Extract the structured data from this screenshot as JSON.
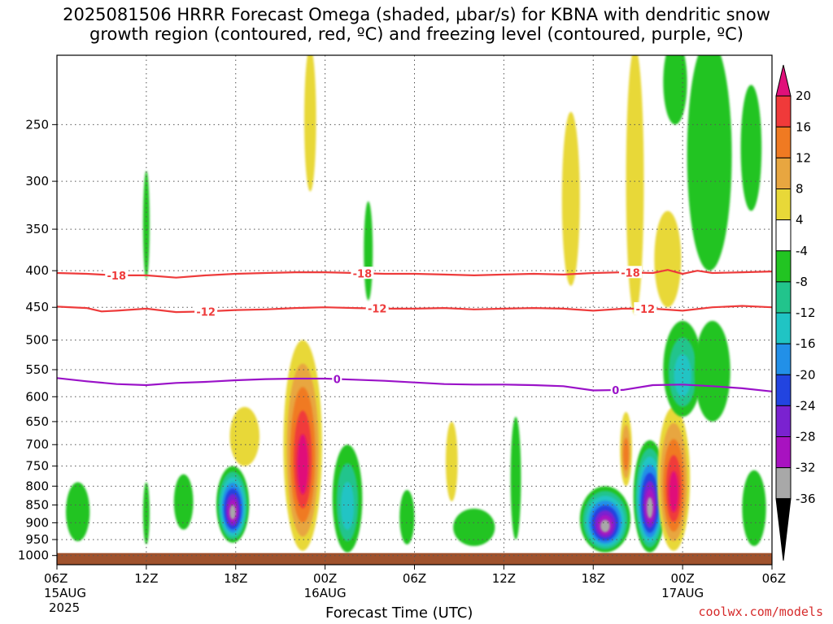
{
  "title_line1": "2025081506 HRRR Forecast Omega (shaded, µbar/s) for KBNA with dendritic snow",
  "title_line2": "growth region (contoured, red, ºC) and freezing level (contoured, purple, ºC)",
  "credit": "coolwx.com/models",
  "colors": {
    "isotherm": "#ee3b3b",
    "freezing_level": "#9a12c8",
    "terrain": "#a0522d",
    "grid": "#555555"
  },
  "chart_data": {
    "type": "heatmap",
    "xlabel": "Forecast Time (UTC)",
    "ylabel": "",
    "x_ticks": [
      {
        "hour": 0,
        "label": "06Z",
        "date": "15AUG",
        "year": "2025"
      },
      {
        "hour": 6,
        "label": "12Z"
      },
      {
        "hour": 12,
        "label": "18Z"
      },
      {
        "hour": 18,
        "label": "00Z",
        "date": "16AUG"
      },
      {
        "hour": 24,
        "label": "06Z"
      },
      {
        "hour": 30,
        "label": "12Z"
      },
      {
        "hour": 36,
        "label": "18Z"
      },
      {
        "hour": 42,
        "label": "00Z",
        "date": "17AUG"
      },
      {
        "hour": 48,
        "label": "06Z"
      }
    ],
    "x_range": [
      0,
      48
    ],
    "y_axis": "pressure (log scale, inverted)",
    "y_range": [
      1030,
      200
    ],
    "y_ticks": [
      250,
      300,
      350,
      400,
      450,
      500,
      550,
      600,
      650,
      700,
      750,
      800,
      850,
      900,
      950,
      1000
    ],
    "grid": true,
    "colorbar": {
      "placement": "right",
      "labels": [
        "20",
        "16",
        "12",
        "8",
        "4",
        "-4",
        "-8",
        "-12",
        "-16",
        "-20",
        "-24",
        "-28",
        "-32",
        "-36"
      ],
      "levels": [
        {
          "min": 20,
          "max": 24,
          "color": "#e0107a"
        },
        {
          "min": 16,
          "max": 20,
          "color": "#f03a3a"
        },
        {
          "min": 12,
          "max": 16,
          "color": "#f07a22"
        },
        {
          "min": 8,
          "max": 12,
          "color": "#e8a640"
        },
        {
          "min": 4,
          "max": 8,
          "color": "#e8d838"
        },
        {
          "min": -4,
          "max": 4,
          "color": "#ffffff"
        },
        {
          "min": -8,
          "max": -4,
          "color": "#22c422"
        },
        {
          "min": -12,
          "max": -8,
          "color": "#22c48c"
        },
        {
          "min": -16,
          "max": -12,
          "color": "#20c4c4"
        },
        {
          "min": -20,
          "max": -16,
          "color": "#2290e8"
        },
        {
          "min": -24,
          "max": -20,
          "color": "#2244e0"
        },
        {
          "min": -28,
          "max": -24,
          "color": "#7a22d0"
        },
        {
          "min": -32,
          "max": -28,
          "color": "#a812c0"
        },
        {
          "min": -36,
          "max": -32,
          "color": "#a8a8a8"
        },
        {
          "min": -40,
          "max": -36,
          "color": "#000000"
        }
      ]
    },
    "contours": [
      {
        "label": "-18",
        "color": "red",
        "points": [
          [
            0,
            403
          ],
          [
            2,
            404
          ],
          [
            4,
            406
          ],
          [
            6,
            406
          ],
          [
            8,
            409
          ],
          [
            10,
            406
          ],
          [
            12,
            404
          ],
          [
            14,
            403
          ],
          [
            16,
            402
          ],
          [
            18,
            402
          ],
          [
            20,
            403
          ],
          [
            22,
            404
          ],
          [
            24,
            404
          ],
          [
            26,
            405
          ],
          [
            28,
            406
          ],
          [
            30,
            405
          ],
          [
            32,
            404
          ],
          [
            34,
            405
          ],
          [
            36,
            403
          ],
          [
            38,
            402
          ],
          [
            40,
            403
          ],
          [
            41,
            399
          ],
          [
            42,
            404
          ],
          [
            43,
            400
          ],
          [
            44,
            403
          ],
          [
            46,
            402
          ],
          [
            48,
            401
          ]
        ],
        "label_hours": [
          4,
          20.5,
          38.5
        ]
      },
      {
        "label": "-12",
        "color": "red",
        "points": [
          [
            0,
            449
          ],
          [
            2,
            451
          ],
          [
            3,
            456
          ],
          [
            4,
            455
          ],
          [
            6,
            452
          ],
          [
            8,
            457
          ],
          [
            10,
            456
          ],
          [
            12,
            454
          ],
          [
            14,
            453
          ],
          [
            16,
            451
          ],
          [
            18,
            450
          ],
          [
            20,
            451
          ],
          [
            22,
            452
          ],
          [
            24,
            452
          ],
          [
            26,
            451
          ],
          [
            28,
            453
          ],
          [
            30,
            452
          ],
          [
            32,
            451
          ],
          [
            34,
            452
          ],
          [
            36,
            455
          ],
          [
            38,
            452
          ],
          [
            40,
            452
          ],
          [
            42,
            455
          ],
          [
            44,
            450
          ],
          [
            46,
            448
          ],
          [
            48,
            450
          ]
        ],
        "label_hours": [
          10,
          21.5,
          39.5
        ]
      },
      {
        "label": "0",
        "color": "purple",
        "points": [
          [
            0,
            565
          ],
          [
            2,
            571
          ],
          [
            4,
            576
          ],
          [
            6,
            578
          ],
          [
            8,
            574
          ],
          [
            10,
            572
          ],
          [
            12,
            569
          ],
          [
            14,
            567
          ],
          [
            16,
            566
          ],
          [
            18,
            566
          ],
          [
            20,
            568
          ],
          [
            22,
            570
          ],
          [
            24,
            573
          ],
          [
            26,
            576
          ],
          [
            28,
            577
          ],
          [
            30,
            577
          ],
          [
            32,
            578
          ],
          [
            34,
            580
          ],
          [
            36,
            588
          ],
          [
            38,
            587
          ],
          [
            40,
            578
          ],
          [
            42,
            577
          ],
          [
            44,
            580
          ],
          [
            46,
            584
          ],
          [
            48,
            590
          ]
        ],
        "label_hours": [
          18.8,
          37.5
        ]
      }
    ],
    "omega_cells": [
      {
        "hour": 1.4,
        "p": 870,
        "value": -6,
        "width_h": 1.6,
        "p_top": 790,
        "p_bot": 955
      },
      {
        "hour": 6.0,
        "p": 340,
        "value": -6,
        "width_h": 0.4,
        "p_top": 290,
        "p_bot": 410
      },
      {
        "hour": 6.0,
        "p": 870,
        "value": -6,
        "width_h": 0.4,
        "p_top": 790,
        "p_bot": 965
      },
      {
        "hour": 8.5,
        "p": 830,
        "value": -6,
        "width_h": 1.3,
        "p_top": 770,
        "p_bot": 920
      },
      {
        "hour": 11.8,
        "p": 860,
        "value": -34,
        "width_h": 2.2,
        "p_top": 750,
        "p_bot": 960
      },
      {
        "hour": 12.6,
        "p": 690,
        "value": 6,
        "width_h": 2.0,
        "p_top": 620,
        "p_bot": 750
      },
      {
        "hour": 16.5,
        "p": 780,
        "value": 22,
        "width_h": 2.6,
        "p_top": 500,
        "p_bot": 985
      },
      {
        "hour": 17.0,
        "p": 260,
        "value": 6,
        "width_h": 0.8,
        "p_top": 195,
        "p_bot": 310
      },
      {
        "hour": 19.5,
        "p": 820,
        "value": -14,
        "width_h": 2.0,
        "p_top": 700,
        "p_bot": 990
      },
      {
        "hour": 20.9,
        "p": 380,
        "value": -6,
        "width_h": 0.6,
        "p_top": 320,
        "p_bot": 440
      },
      {
        "hour": 23.5,
        "p": 880,
        "value": -6,
        "width_h": 1.0,
        "p_top": 810,
        "p_bot": 965
      },
      {
        "hour": 26.5,
        "p": 740,
        "value": 6,
        "width_h": 0.8,
        "p_top": 650,
        "p_bot": 840
      },
      {
        "hour": 28.0,
        "p": 910,
        "value": -6,
        "width_h": 2.8,
        "p_top": 860,
        "p_bot": 970
      },
      {
        "hour": 30.8,
        "p": 760,
        "value": -6,
        "width_h": 0.7,
        "p_top": 640,
        "p_bot": 950
      },
      {
        "hour": 34.5,
        "p": 300,
        "value": 6,
        "width_h": 1.2,
        "p_top": 240,
        "p_bot": 420
      },
      {
        "hour": 36.8,
        "p": 895,
        "value": -36,
        "width_h": 3.4,
        "p_top": 800,
        "p_bot": 990
      },
      {
        "hour": 38.2,
        "p": 700,
        "value": 14,
        "width_h": 0.8,
        "p_top": 630,
        "p_bot": 800
      },
      {
        "hour": 38.8,
        "p": 290,
        "value": 6,
        "width_h": 1.2,
        "p_top": 195,
        "p_bot": 460
      },
      {
        "hour": 39.8,
        "p": 890,
        "value": -36,
        "width_h": 2.2,
        "p_top": 690,
        "p_bot": 990
      },
      {
        "hour": 41.4,
        "p": 770,
        "value": 22,
        "width_h": 2.2,
        "p_top": 620,
        "p_bot": 985
      },
      {
        "hour": 41.0,
        "p": 380,
        "value": 6,
        "width_h": 1.8,
        "p_top": 330,
        "p_bot": 450
      },
      {
        "hour": 41.5,
        "p": 210,
        "value": -6,
        "width_h": 1.6,
        "p_top": 190,
        "p_bot": 250
      },
      {
        "hour": 42.0,
        "p": 530,
        "value": -14,
        "width_h": 2.6,
        "p_top": 470,
        "p_bot": 640
      },
      {
        "hour": 43.8,
        "p": 260,
        "value": -6,
        "width_h": 3.0,
        "p_top": 190,
        "p_bot": 400
      },
      {
        "hour": 44.0,
        "p": 520,
        "value": -6,
        "width_h": 2.4,
        "p_top": 470,
        "p_bot": 650
      },
      {
        "hour": 46.6,
        "p": 260,
        "value": -6,
        "width_h": 1.4,
        "p_top": 220,
        "p_bot": 330
      },
      {
        "hour": 46.8,
        "p": 890,
        "value": -6,
        "width_h": 1.6,
        "p_top": 760,
        "p_bot": 970
      }
    ]
  }
}
